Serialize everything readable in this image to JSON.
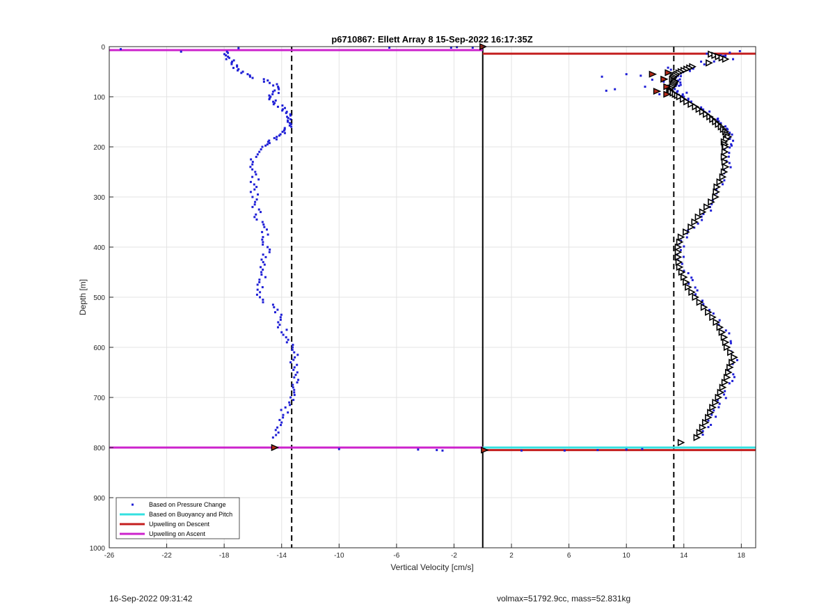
{
  "footer": {
    "left": "16-Sep-2022 09:31:42",
    "right": "volmax=51792.9cc, mass=52.831kg"
  },
  "chart_data": {
    "type": "scatter",
    "title": "p6710867: Ellett Array 8 15-Sep-2022 16:17:35Z",
    "xlabel": "Vertical Velocity [cm/s]",
    "ylabel": "Depth [m]",
    "xlim": [
      -26,
      19
    ],
    "ylim": [
      0,
      1000
    ],
    "y_reversed": true,
    "grid": true,
    "legend_position": "bottom-left",
    "x_ticks": [
      -26,
      -22,
      -18,
      -14,
      -10,
      -6,
      -2,
      2,
      6,
      10,
      14,
      18
    ],
    "y_ticks": [
      0,
      100,
      200,
      300,
      400,
      500,
      600,
      700,
      800,
      900,
      1000
    ],
    "colors": {
      "pressure": "#1f1fd6",
      "buoyancy": "#33e0e0",
      "descent": "#c41e1e",
      "ascent": "#cc22cc",
      "reference": "#000000",
      "marker_fill": "#b52b1a"
    },
    "legend": [
      {
        "label": "Based on Pressure Change",
        "style": "dot",
        "color": "#1f1fd6"
      },
      {
        "label": "Based on Buoyancy and Pitch",
        "style": "line",
        "color": "#33e0e0"
      },
      {
        "label": "Upwelling on Descent",
        "style": "line",
        "color": "#c41e1e"
      },
      {
        "label": "Upwelling on Ascent",
        "style": "line",
        "color": "#cc22cc"
      }
    ],
    "reference_lines": {
      "zero_velocity_x": 0,
      "dashed_x": [
        -13.3,
        13.3
      ]
    },
    "upwelling_ascent": [
      {
        "depth": 7,
        "x_from": -26,
        "x_to": 0
      },
      {
        "depth": 800,
        "x_from": -26,
        "x_to": 0
      }
    ],
    "upwelling_descent": [
      {
        "depth": 14,
        "x_from": 0,
        "x_to": 19
      },
      {
        "depth": 805,
        "x_from": 0,
        "x_to": 19
      }
    ],
    "buoyancy_pitch_lines": [
      {
        "depth": 800,
        "x_from": 0,
        "x_to": 19
      }
    ],
    "pressure_change_ascent_profile": [
      [
        -17.8,
        10
      ],
      [
        -17.7,
        20
      ],
      [
        -17.5,
        30
      ],
      [
        -17.2,
        40
      ],
      [
        -16.8,
        50
      ],
      [
        -16.0,
        60
      ],
      [
        -15.0,
        70
      ],
      [
        -14.2,
        80
      ],
      [
        -14.4,
        90
      ],
      [
        -14.8,
        100
      ],
      [
        -14.5,
        110
      ],
      [
        -14.1,
        120
      ],
      [
        -13.7,
        130
      ],
      [
        -13.4,
        140
      ],
      [
        -13.3,
        150
      ],
      [
        -13.6,
        160
      ],
      [
        -13.9,
        170
      ],
      [
        -14.2,
        180
      ],
      [
        -14.8,
        190
      ],
      [
        -15.6,
        200
      ],
      [
        -15.8,
        220
      ],
      [
        -16.0,
        240
      ],
      [
        -15.9,
        260
      ],
      [
        -15.8,
        280
      ],
      [
        -16.0,
        300
      ],
      [
        -15.8,
        320
      ],
      [
        -15.6,
        340
      ],
      [
        -15.3,
        360
      ],
      [
        -15.1,
        380
      ],
      [
        -15.0,
        400
      ],
      [
        -15.1,
        420
      ],
      [
        -15.2,
        440
      ],
      [
        -15.3,
        460
      ],
      [
        -15.4,
        480
      ],
      [
        -15.5,
        500
      ],
      [
        -14.5,
        520
      ],
      [
        -14.2,
        540
      ],
      [
        -14.0,
        560
      ],
      [
        -13.5,
        580
      ],
      [
        -13.2,
        600
      ],
      [
        -13.1,
        620
      ],
      [
        -13.2,
        640
      ],
      [
        -13.1,
        660
      ],
      [
        -13.2,
        680
      ],
      [
        -13.4,
        700
      ],
      [
        -13.7,
        720
      ],
      [
        -14.0,
        740
      ],
      [
        -14.3,
        760
      ],
      [
        -14.6,
        780
      ]
    ],
    "pressure_change_surface_points": [
      [
        -25.2,
        5
      ],
      [
        -21.0,
        10
      ],
      [
        -17.0,
        3
      ],
      [
        -6.5,
        2
      ],
      [
        -2.2,
        2
      ],
      [
        -1.8,
        1
      ],
      [
        -0.7,
        2
      ]
    ],
    "pressure_change_bottom_points": [
      [
        -10.0,
        803
      ],
      [
        -4.5,
        804
      ],
      [
        -3.2,
        805
      ],
      [
        -2.8,
        806
      ],
      [
        2.7,
        806
      ],
      [
        5.7,
        806
      ],
      [
        8.0,
        805
      ],
      [
        10.0,
        804
      ],
      [
        11.1,
        803
      ]
    ],
    "pressure_change_descent_scatter": [
      [
        15.6,
        14
      ],
      [
        16.5,
        20
      ],
      [
        17.2,
        12
      ],
      [
        16.9,
        18
      ],
      [
        17.9,
        9
      ],
      [
        15.2,
        30
      ],
      [
        8.3,
        60
      ],
      [
        10.0,
        55
      ],
      [
        11.0,
        58
      ],
      [
        11.8,
        66
      ],
      [
        12.6,
        70
      ],
      [
        9.2,
        85
      ],
      [
        8.6,
        88
      ],
      [
        11.3,
        80
      ],
      [
        12.3,
        95
      ],
      [
        13.5,
        75
      ],
      [
        14.2,
        92
      ],
      [
        14.0,
        100
      ],
      [
        13.1,
        46
      ],
      [
        12.9,
        42
      ]
    ],
    "buoyancy_pitch_profile": [
      [
        15.9,
        15
      ],
      [
        16.4,
        20
      ],
      [
        16.9,
        25
      ],
      [
        14.6,
        40
      ],
      [
        14.2,
        45
      ],
      [
        13.8,
        50
      ],
      [
        13.5,
        55
      ],
      [
        13.3,
        60
      ],
      [
        13.2,
        65
      ],
      [
        13.4,
        70
      ],
      [
        13.3,
        75
      ],
      [
        13.2,
        80
      ],
      [
        13.0,
        85
      ],
      [
        13.1,
        90
      ],
      [
        13.4,
        95
      ],
      [
        13.7,
        100
      ],
      [
        14.2,
        110
      ],
      [
        14.8,
        120
      ],
      [
        15.3,
        130
      ],
      [
        15.8,
        140
      ],
      [
        16.2,
        150
      ],
      [
        16.6,
        160
      ],
      [
        16.9,
        170
      ],
      [
        17.1,
        180
      ],
      [
        16.8,
        190
      ],
      [
        16.9,
        200
      ],
      [
        16.8,
        220
      ],
      [
        16.9,
        240
      ],
      [
        16.7,
        260
      ],
      [
        16.3,
        280
      ],
      [
        16.2,
        300
      ],
      [
        15.6,
        320
      ],
      [
        15.0,
        340
      ],
      [
        14.5,
        360
      ],
      [
        13.8,
        380
      ],
      [
        13.6,
        400
      ],
      [
        13.6,
        420
      ],
      [
        13.7,
        440
      ],
      [
        14.0,
        460
      ],
      [
        14.3,
        480
      ],
      [
        14.8,
        500
      ],
      [
        15.4,
        520
      ],
      [
        16.0,
        540
      ],
      [
        16.5,
        560
      ],
      [
        16.8,
        580
      ],
      [
        17.0,
        600
      ],
      [
        17.5,
        620
      ],
      [
        17.2,
        640
      ],
      [
        17.0,
        660
      ],
      [
        16.7,
        680
      ],
      [
        16.4,
        700
      ],
      [
        16.0,
        720
      ],
      [
        15.7,
        740
      ],
      [
        15.3,
        760
      ],
      [
        14.9,
        780
      ]
    ],
    "descent_markers": [
      [
        11.8,
        55
      ],
      [
        12.6,
        65
      ],
      [
        12.9,
        52
      ],
      [
        12.8,
        80
      ],
      [
        12.1,
        89
      ],
      [
        12.8,
        95
      ]
    ],
    "ascent_markers": [
      [
        -14.5,
        800
      ],
      [
        0.1,
        805
      ],
      [
        0.0,
        0
      ]
    ]
  }
}
